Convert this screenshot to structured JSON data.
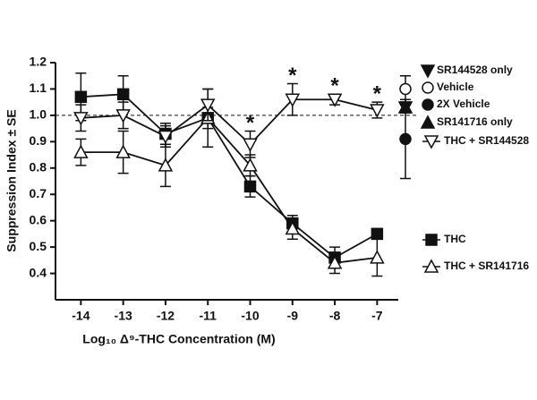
{
  "chart_data": {
    "type": "line",
    "xlabel": "Log₁₀ Δ⁹-THC Concentration (M)",
    "ylabel": "Suppression Index ± SE",
    "x": [
      -14,
      -13,
      -12,
      -11,
      -10,
      -9,
      -8,
      -7
    ],
    "xlim": [
      -14.6,
      -6.5
    ],
    "xticks": [
      -14,
      -13,
      -12,
      -11,
      -10,
      -9,
      -8,
      -7
    ],
    "ylim": [
      0.3,
      1.2
    ],
    "yticks": [
      0.4,
      0.5,
      0.6,
      0.7,
      0.8,
      0.9,
      {
        "value": 1,
        "label": "1.0"
      },
      1.1,
      1.2
    ],
    "reference_line": 1,
    "series": [
      {
        "name": "THC",
        "color": "#111111",
        "marker": "square",
        "filled": true,
        "values": [
          1.07,
          1.08,
          0.93,
          0.99,
          0.73,
          0.59,
          0.46,
          0.55
        ],
        "errors": [
          0.09,
          0.07,
          0.04,
          0.04,
          0.04,
          0.03,
          0.04,
          0.02
        ]
      },
      {
        "name": "THC + SR141716",
        "color": "#111111",
        "marker": "triangle-up",
        "filled": false,
        "values": [
          0.86,
          0.86,
          0.81,
          0.99,
          0.81,
          0.57,
          0.44,
          0.46
        ],
        "errors": [
          0.05,
          0.08,
          0.08,
          0.11,
          0.04,
          0.04,
          0.04,
          0.07
        ]
      },
      {
        "name": "THC + SR144528",
        "color": "#111111",
        "marker": "triangle-down",
        "filled": false,
        "values": [
          0.99,
          1.0,
          0.92,
          1.04,
          0.89,
          1.06,
          1.06,
          1.02
        ],
        "errors": [
          0.05,
          0.05,
          0.04,
          0.06,
          0.05,
          0.06,
          0.02,
          0.03
        ]
      }
    ],
    "controls": [
      {
        "name": "SR144528 only",
        "marker": "triangle-down",
        "filled": true,
        "value": 1.03,
        "error": 0.02
      },
      {
        "name": "Vehicle",
        "marker": "circle",
        "filled": false,
        "value": 1.1,
        "error": 0.05
      },
      {
        "name": "2X Vehicle",
        "marker": "circle",
        "filled": true,
        "value": 0.91,
        "error": 0.15
      },
      {
        "name": "SR141716 only",
        "marker": "triangle-up",
        "filled": true,
        "value": 1.03,
        "error": 0.02
      }
    ],
    "annotations": [
      {
        "text": "*",
        "x": -10
      },
      {
        "text": "*",
        "x": -9
      },
      {
        "text": "*",
        "x": -8
      },
      {
        "text": "*",
        "x": -7
      }
    ]
  }
}
